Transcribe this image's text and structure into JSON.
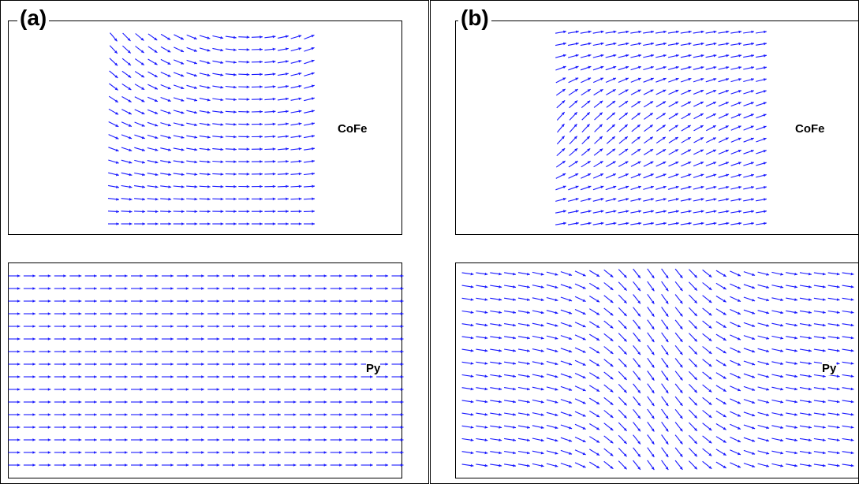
{
  "panels": [
    {
      "label": "(a)",
      "top_layer": {
        "material": "CoFe",
        "magnetization_pattern": "curling: diagonal down-right at top-left, aligned along +x at bottom"
      },
      "bottom_layer": {
        "material": "Py",
        "magnetization_pattern": "uniform along x"
      }
    },
    {
      "label": "(b)",
      "top_layer": {
        "material": "CoFe",
        "magnetization_pattern": "along x at top and bottom, diagonal up-right in middle-left"
      },
      "bottom_layer": {
        "material": "Py",
        "magnetization_pattern": "along x at left and right edges, diagonal down-right in center"
      }
    }
  ],
  "colors": {
    "arrow": "#1a1aff",
    "frame": "#000000",
    "background": "#ffffff"
  }
}
